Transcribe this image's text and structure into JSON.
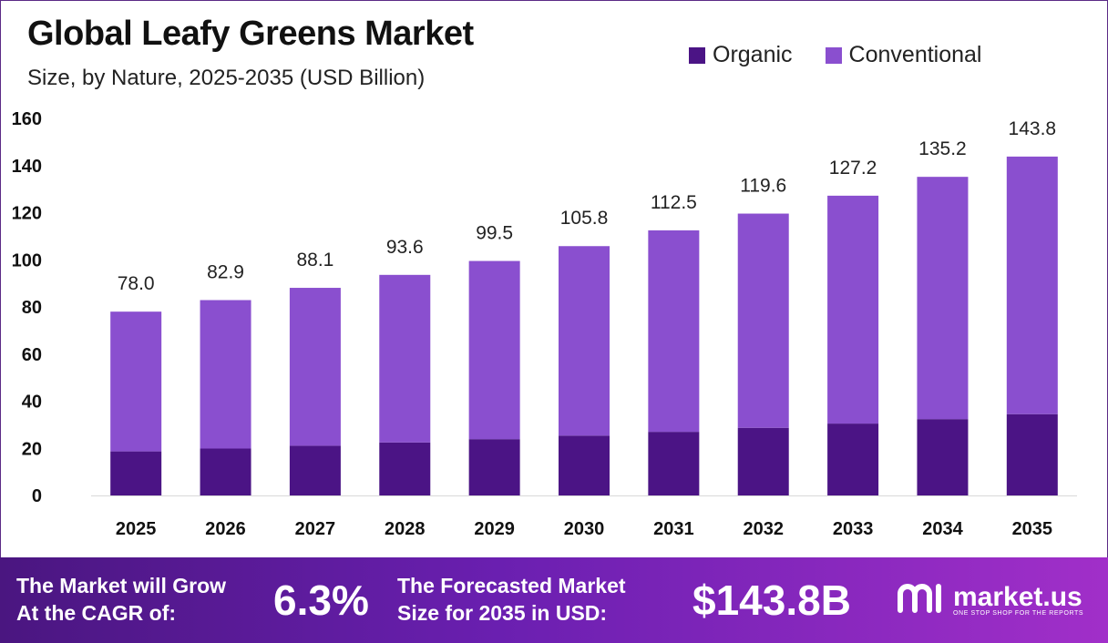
{
  "header": {
    "title": "Global Leafy Greens Market",
    "subtitle": "Size, by Nature, 2025-2035 (USD Billion)"
  },
  "legend": [
    {
      "label": "Organic",
      "color": "#4b1485"
    },
    {
      "label": "Conventional",
      "color": "#8a4fcf"
    }
  ],
  "chart_data": {
    "type": "bar",
    "stacked": true,
    "categories": [
      "2025",
      "2026",
      "2027",
      "2028",
      "2029",
      "2030",
      "2031",
      "2032",
      "2033",
      "2034",
      "2035"
    ],
    "series": [
      {
        "name": "Organic",
        "color": "#4b1485",
        "values": [
          18.7,
          19.9,
          21.1,
          22.5,
          23.9,
          25.4,
          27.0,
          28.7,
          30.5,
          32.4,
          34.5
        ]
      },
      {
        "name": "Conventional",
        "color": "#8a4fcf",
        "values": [
          59.3,
          63.0,
          67.0,
          71.1,
          75.6,
          80.4,
          85.5,
          90.9,
          96.7,
          102.8,
          109.3
        ]
      }
    ],
    "totals": [
      "78.0",
      "82.9",
      "88.1",
      "93.6",
      "99.5",
      "105.8",
      "112.5",
      "119.6",
      "127.2",
      "135.2",
      "143.8"
    ],
    "yticks": [
      "0",
      "20",
      "40",
      "60",
      "80",
      "100",
      "120",
      "140",
      "160"
    ],
    "ylim": [
      0,
      160
    ],
    "grid": false,
    "legend_position": "top-right"
  },
  "footer": {
    "cagr_label_line1": "The Market will Grow",
    "cagr_label_line2": "At the CAGR of:",
    "cagr_value": "6.3%",
    "forecast_label_line1": "The Forecasted Market",
    "forecast_label_line2": "Size for 2035 in USD:",
    "forecast_value": "$143.8B",
    "brand_name": "market.us",
    "brand_tagline": "ONE STOP SHOP FOR THE REPORTS"
  }
}
